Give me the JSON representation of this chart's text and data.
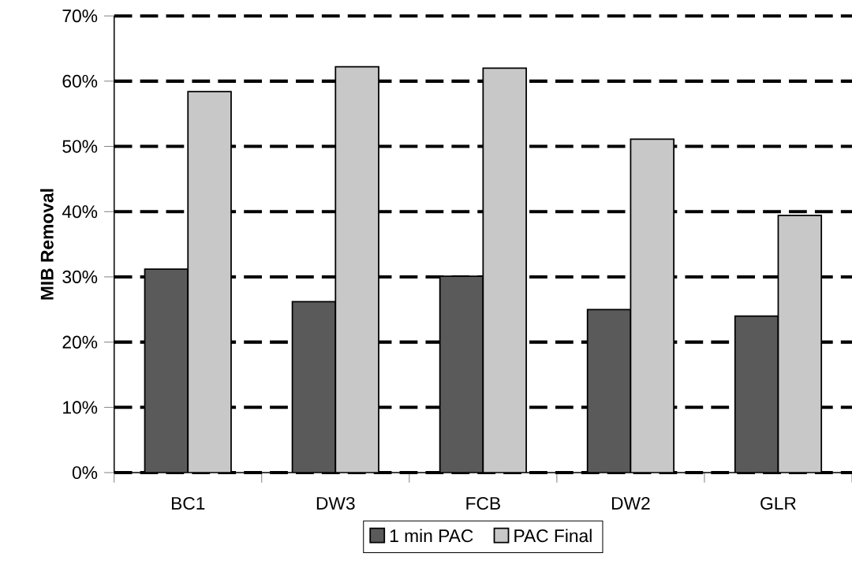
{
  "chart_data": {
    "type": "bar",
    "ylabel": "MIB Removal",
    "categories": [
      "BC1",
      "DW3",
      "FCB",
      "DW2",
      "GLR"
    ],
    "series": [
      {
        "name": "1 min PAC",
        "color": "#5a5a5a",
        "values": [
          31.2,
          26.2,
          30.1,
          25,
          24
        ]
      },
      {
        "name": "PAC Final",
        "color": "#c8c8c8",
        "values": [
          58.4,
          62.2,
          62,
          51.1,
          39.4
        ]
      }
    ],
    "ylim": [
      0,
      70
    ],
    "yticks": [
      {
        "value": 0,
        "label": "0%"
      },
      {
        "value": 10,
        "label": "10%"
      },
      {
        "value": 20,
        "label": "20%"
      },
      {
        "value": 30,
        "label": "30%"
      },
      {
        "value": 40,
        "label": "40%"
      },
      {
        "value": 50,
        "label": "50%"
      },
      {
        "value": 60,
        "label": "60%"
      },
      {
        "value": 70,
        "label": "70%"
      }
    ],
    "grid": "y",
    "line_style": "dashed",
    "legend": "bottom"
  }
}
